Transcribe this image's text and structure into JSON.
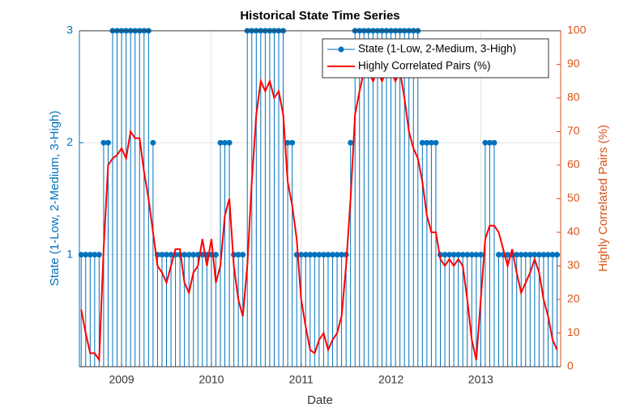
{
  "chart_data": {
    "type": "line",
    "title": "Historical State Time Series",
    "xlabel": "Date",
    "ylabel": "State (1-Low, 2-Medium, 3-High)",
    "y2label": "Highly Correlated Pairs (%)",
    "x": [
      2008.55,
      2008.6,
      2008.65,
      2008.7,
      2008.75,
      2008.8,
      2008.85,
      2008.9,
      2008.95,
      2009,
      2009.05,
      2009.1,
      2009.15,
      2009.2,
      2009.25,
      2009.3,
      2009.35,
      2009.4,
      2009.45,
      2009.5,
      2009.55,
      2009.6,
      2009.65,
      2009.7,
      2009.75,
      2009.8,
      2009.85,
      2009.9,
      2009.95,
      2010,
      2010.05,
      2010.1,
      2010.15,
      2010.2,
      2010.25,
      2010.3,
      2010.35,
      2010.4,
      2010.45,
      2010.5,
      2010.55,
      2010.6,
      2010.65,
      2010.7,
      2010.75,
      2010.8,
      2010.85,
      2010.9,
      2010.95,
      2011,
      2011.05,
      2011.1,
      2011.15,
      2011.2,
      2011.25,
      2011.3,
      2011.35,
      2011.4,
      2011.45,
      2011.5,
      2011.55,
      2011.6,
      2011.65,
      2011.7,
      2011.75,
      2011.8,
      2011.85,
      2011.9,
      2011.95,
      2012,
      2012.05,
      2012.1,
      2012.15,
      2012.2,
      2012.25,
      2012.3,
      2012.35,
      2012.4,
      2012.45,
      2012.5,
      2012.55,
      2012.6,
      2012.65,
      2012.7,
      2012.75,
      2012.8,
      2012.85,
      2012.9,
      2012.95,
      2013,
      2013.05,
      2013.1,
      2013.15,
      2013.2,
      2013.25,
      2013.3,
      2013.35,
      2013.4,
      2013.45,
      2013.5,
      2013.55,
      2013.6,
      2013.65,
      2013.7,
      2013.75,
      2013.8,
      2013.85
    ],
    "series": [
      {
        "name": "State (1-Low, 2-Medium, 3-High)",
        "style": "stem",
        "color": "#0072BD",
        "axis": "y",
        "values": [
          1,
          1,
          1,
          1,
          1,
          2,
          2,
          3,
          3,
          3,
          3,
          3,
          3,
          3,
          3,
          3,
          2,
          1,
          1,
          1,
          1,
          1,
          1,
          1,
          1,
          1,
          1,
          1,
          1,
          1,
          1,
          2,
          2,
          2,
          1,
          1,
          1,
          3,
          3,
          3,
          3,
          3,
          3,
          3,
          3,
          3,
          2,
          2,
          1,
          1,
          1,
          1,
          1,
          1,
          1,
          1,
          1,
          1,
          1,
          1,
          2,
          3,
          3,
          3,
          3,
          3,
          3,
          3,
          3,
          3,
          3,
          3,
          3,
          3,
          3,
          3,
          2,
          2,
          2,
          2,
          1,
          1,
          1,
          1,
          1,
          1,
          1,
          1,
          1,
          1,
          2,
          2,
          2,
          1,
          1,
          1,
          1,
          1,
          1,
          1,
          1,
          1,
          1,
          1,
          1,
          1,
          1
        ]
      },
      {
        "name": "Highly Correlated Pairs (%)",
        "style": "line",
        "color": "#FF0000",
        "axis": "y2",
        "values": [
          17,
          10,
          4,
          4,
          2,
          35,
          60,
          62,
          63,
          65,
          62,
          70,
          68,
          68,
          58,
          50,
          40,
          30,
          28,
          25,
          30,
          35,
          35,
          25,
          22,
          28,
          30,
          38,
          30,
          38,
          25,
          30,
          45,
          50,
          30,
          20,
          15,
          30,
          55,
          75,
          85,
          82,
          85,
          80,
          82,
          75,
          55,
          48,
          38,
          20,
          12,
          5,
          4,
          8,
          10,
          5,
          8,
          10,
          15,
          30,
          50,
          75,
          82,
          88,
          88,
          85,
          88,
          85,
          88,
          88,
          85,
          88,
          80,
          70,
          65,
          62,
          55,
          45,
          40,
          40,
          32,
          30,
          32,
          30,
          32,
          30,
          20,
          8,
          2,
          20,
          38,
          42,
          42,
          40,
          35,
          30,
          35,
          28,
          22,
          25,
          28,
          32,
          28,
          20,
          15,
          8,
          5
        ]
      }
    ],
    "xlim": [
      2008.53,
      2013.89
    ],
    "xticks": [
      2009,
      2010,
      2011,
      2012,
      2013
    ],
    "ylim": [
      0,
      3
    ],
    "yticks": [
      1,
      2,
      3
    ],
    "y2lim": [
      0,
      100
    ],
    "y2ticks": [
      0,
      10,
      20,
      30,
      40,
      50,
      60,
      70,
      80,
      90,
      100
    ],
    "y_color": "#0072BD",
    "y2_color": "#D95319",
    "grid": true,
    "legend": "northeast"
  }
}
